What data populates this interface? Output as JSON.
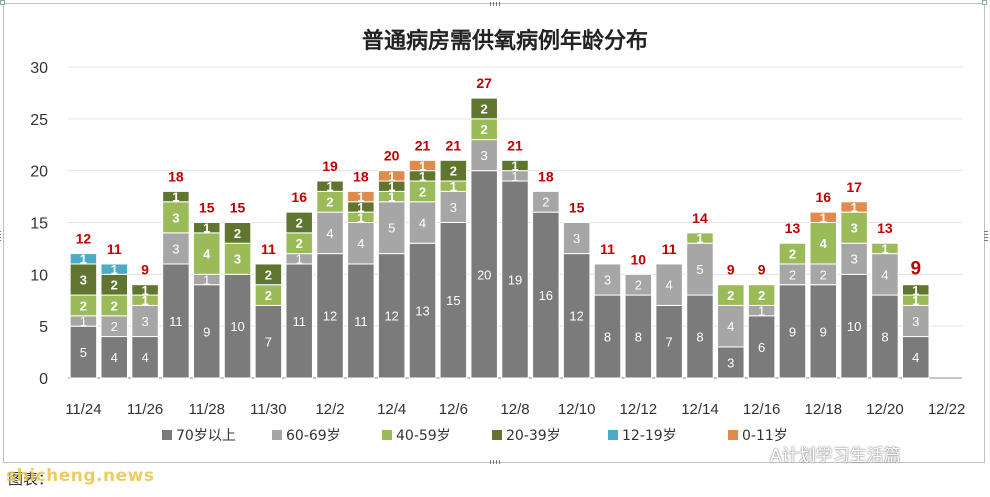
{
  "chart_data": {
    "type": "bar",
    "stacked": true,
    "title": "普通病房需供氧病例年龄分布",
    "ylim": [
      0,
      30
    ],
    "yticks": [
      0,
      5,
      10,
      15,
      20,
      25,
      30
    ],
    "grid": true,
    "legend_position": "bottom",
    "categories": [
      "11/24",
      "11/25",
      "11/26",
      "11/27",
      "11/28",
      "11/29",
      "11/30",
      "12/1",
      "12/2",
      "12/3",
      "12/4",
      "12/5",
      "12/6",
      "12/7",
      "12/8",
      "12/9",
      "12/10",
      "12/11",
      "12/12",
      "12/13",
      "12/14",
      "12/15",
      "12/16",
      "12/17",
      "12/18",
      "12/19",
      "12/20",
      "12/21",
      "12/22"
    ],
    "xtick_labels": [
      "11/24",
      "",
      "11/26",
      "",
      "11/28",
      "",
      "11/30",
      "",
      "12/2",
      "",
      "12/4",
      "",
      "12/6",
      "",
      "12/8",
      "",
      "12/10",
      "",
      "12/12",
      "",
      "12/14",
      "",
      "12/16",
      "",
      "12/18",
      "",
      "12/20",
      "",
      "12/22"
    ],
    "series": [
      {
        "name": "70岁以上",
        "color": "#7b7b7b",
        "values": [
          5,
          4,
          4,
          11,
          9,
          10,
          7,
          11,
          12,
          11,
          12,
          13,
          15,
          20,
          19,
          16,
          12,
          8,
          8,
          7,
          8,
          3,
          6,
          9,
          9,
          10,
          8,
          4,
          0
        ]
      },
      {
        "name": "60-69岁",
        "color": "#a6a6a6",
        "values": [
          1,
          2,
          3,
          3,
          1,
          0,
          0,
          1,
          4,
          4,
          5,
          4,
          3,
          3,
          1,
          2,
          3,
          3,
          2,
          4,
          5,
          4,
          1,
          2,
          2,
          3,
          4,
          3,
          0
        ]
      },
      {
        "name": "40-59岁",
        "color": "#9bbb59",
        "values": [
          2,
          2,
          1,
          3,
          4,
          3,
          2,
          2,
          2,
          1,
          1,
          2,
          1,
          2,
          0,
          0,
          0,
          0,
          0,
          0,
          1,
          2,
          2,
          2,
          4,
          3,
          1,
          1,
          0
        ]
      },
      {
        "name": "20-39岁",
        "color": "#5f7530",
        "values": [
          3,
          2,
          1,
          1,
          1,
          2,
          2,
          2,
          1,
          1,
          1,
          1,
          2,
          2,
          1,
          0,
          0,
          0,
          0,
          0,
          0,
          0,
          0,
          0,
          0,
          0,
          0,
          1,
          0
        ]
      },
      {
        "name": "12-19岁",
        "color": "#4aacc6",
        "values": [
          1,
          1,
          0,
          0,
          0,
          0,
          0,
          0,
          0,
          0,
          0,
          0,
          0,
          0,
          0,
          0,
          0,
          0,
          0,
          0,
          0,
          0,
          0,
          0,
          0,
          0,
          0,
          0,
          0
        ]
      },
      {
        "name": "0-11岁",
        "color": "#e08a4c",
        "values": [
          0,
          0,
          0,
          0,
          0,
          0,
          0,
          0,
          0,
          1,
          1,
          1,
          0,
          0,
          0,
          0,
          0,
          0,
          0,
          0,
          0,
          0,
          0,
          0,
          1,
          1,
          0,
          0,
          0
        ]
      }
    ],
    "totals": [
      "12",
      "11",
      "9",
      "18",
      "15",
      "15",
      "11",
      "16",
      "19",
      "18",
      "20",
      "21",
      "21",
      "27",
      "21",
      "18",
      "15",
      "11",
      "10",
      "11",
      "14",
      "9",
      "9",
      "13",
      "16",
      "17",
      "13",
      "9",
      ""
    ],
    "total_label_color": "#c00000"
  },
  "source_text": "图表：",
  "site_watermark": "shicheng.news",
  "wechat_watermark": "A计划学习生活篇"
}
